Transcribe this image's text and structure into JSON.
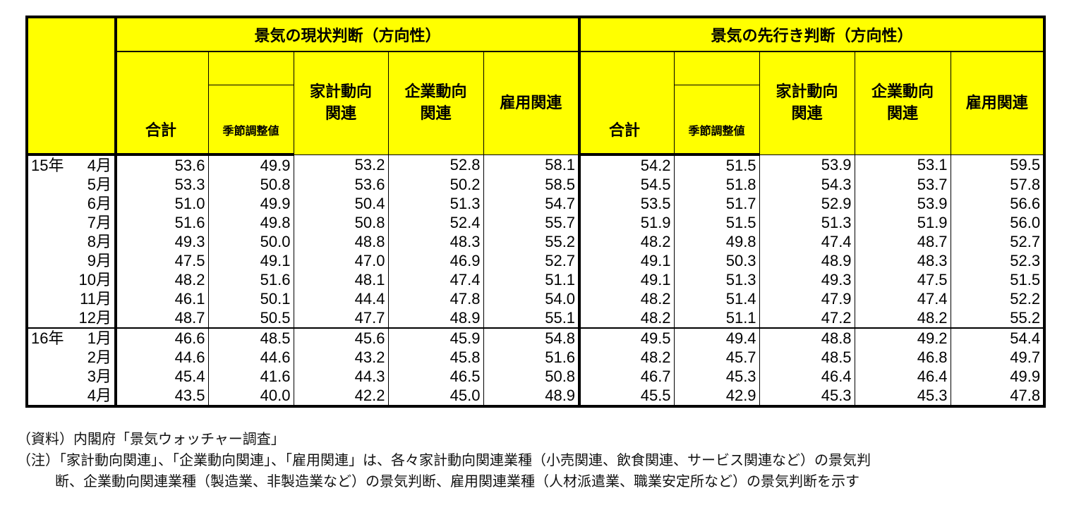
{
  "table": {
    "group_current": "景気の現状判断（方向性）",
    "group_future": "景気の先行き判断（方向性）",
    "columns": {
      "total": "合計",
      "seasonal": "季節調整値",
      "household": [
        "家計動向",
        "関連"
      ],
      "corporate": [
        "企業動向",
        "関連"
      ],
      "employment": "雇用関連"
    },
    "rows": [
      {
        "year": "15年",
        "month": "4月",
        "cur": [
          "53.6",
          "49.9",
          "53.2",
          "52.8",
          "58.1"
        ],
        "fut": [
          "54.2",
          "51.5",
          "53.9",
          "53.1",
          "59.5"
        ]
      },
      {
        "year": "",
        "month": "5月",
        "cur": [
          "53.3",
          "50.8",
          "53.6",
          "50.2",
          "58.5"
        ],
        "fut": [
          "54.5",
          "51.8",
          "54.3",
          "53.7",
          "57.8"
        ]
      },
      {
        "year": "",
        "month": "6月",
        "cur": [
          "51.0",
          "49.9",
          "50.4",
          "51.3",
          "54.7"
        ],
        "fut": [
          "53.5",
          "51.7",
          "52.9",
          "53.9",
          "56.6"
        ]
      },
      {
        "year": "",
        "month": "7月",
        "cur": [
          "51.6",
          "49.8",
          "50.8",
          "52.4",
          "55.7"
        ],
        "fut": [
          "51.9",
          "51.5",
          "51.3",
          "51.9",
          "56.0"
        ]
      },
      {
        "year": "",
        "month": "8月",
        "cur": [
          "49.3",
          "50.0",
          "48.8",
          "48.3",
          "55.2"
        ],
        "fut": [
          "48.2",
          "49.8",
          "47.4",
          "48.7",
          "52.7"
        ]
      },
      {
        "year": "",
        "month": "9月",
        "cur": [
          "47.5",
          "49.1",
          "47.0",
          "46.9",
          "52.7"
        ],
        "fut": [
          "49.1",
          "50.3",
          "48.9",
          "48.3",
          "52.3"
        ]
      },
      {
        "year": "",
        "month": "10月",
        "cur": [
          "48.2",
          "51.6",
          "48.1",
          "47.4",
          "51.1"
        ],
        "fut": [
          "49.1",
          "51.3",
          "49.3",
          "47.5",
          "51.5"
        ]
      },
      {
        "year": "",
        "month": "11月",
        "cur": [
          "46.1",
          "50.1",
          "44.4",
          "47.8",
          "54.0"
        ],
        "fut": [
          "48.2",
          "51.4",
          "47.9",
          "47.4",
          "52.2"
        ]
      },
      {
        "year": "",
        "month": "12月",
        "cur": [
          "48.7",
          "50.5",
          "47.7",
          "48.9",
          "55.1"
        ],
        "fut": [
          "48.2",
          "51.1",
          "47.2",
          "48.2",
          "55.2"
        ]
      },
      {
        "year": "16年",
        "month": "1月",
        "cur": [
          "46.6",
          "48.5",
          "45.6",
          "45.9",
          "54.8"
        ],
        "fut": [
          "49.5",
          "49.4",
          "48.8",
          "49.2",
          "54.4"
        ]
      },
      {
        "year": "",
        "month": "2月",
        "cur": [
          "44.6",
          "44.6",
          "43.2",
          "45.8",
          "51.6"
        ],
        "fut": [
          "48.2",
          "45.7",
          "48.5",
          "46.8",
          "49.7"
        ]
      },
      {
        "year": "",
        "month": "3月",
        "cur": [
          "45.4",
          "41.6",
          "44.3",
          "46.5",
          "50.8"
        ],
        "fut": [
          "46.7",
          "45.3",
          "46.4",
          "46.4",
          "49.9"
        ]
      },
      {
        "year": "",
        "month": "4月",
        "cur": [
          "43.5",
          "40.0",
          "42.2",
          "45.0",
          "48.9"
        ],
        "fut": [
          "45.5",
          "42.9",
          "45.3",
          "45.3",
          "47.8"
        ]
      }
    ]
  },
  "notes": {
    "source": "（資料）内閣府「景気ウォッチャー調査」",
    "note_line1": "（注）「家計動向関連」、「企業動向関連」、「雇用関連」は、各々家計動向関連業種（小売関連、飲食関連、サービス関連など）の景気判",
    "note_line2": "断、企業動向関連業種（製造業、非製造業など）の景気判断、雇用関連業種（人材派遣業、職業安定所など）の景気判断を示す"
  },
  "colors": {
    "header_bg": "#ffff00",
    "border": "#000000"
  },
  "chart_data": {
    "type": "table",
    "series_groups": [
      "景気の現状判断（方向性）",
      "景気の先行き判断（方向性）"
    ],
    "columns": [
      "合計",
      "季節調整値",
      "家計動向関連",
      "企業動向関連",
      "雇用関連"
    ],
    "row_labels": [
      "15年 4月",
      "5月",
      "6月",
      "7月",
      "8月",
      "9月",
      "10月",
      "11月",
      "12月",
      "16年 1月",
      "2月",
      "3月",
      "4月"
    ],
    "current": [
      [
        53.6,
        49.9,
        53.2,
        52.8,
        58.1
      ],
      [
        53.3,
        50.8,
        53.6,
        50.2,
        58.5
      ],
      [
        51.0,
        49.9,
        50.4,
        51.3,
        54.7
      ],
      [
        51.6,
        49.8,
        50.8,
        52.4,
        55.7
      ],
      [
        49.3,
        50.0,
        48.8,
        48.3,
        55.2
      ],
      [
        47.5,
        49.1,
        47.0,
        46.9,
        52.7
      ],
      [
        48.2,
        51.6,
        48.1,
        47.4,
        51.1
      ],
      [
        46.1,
        50.1,
        44.4,
        47.8,
        54.0
      ],
      [
        48.7,
        50.5,
        47.7,
        48.9,
        55.1
      ],
      [
        46.6,
        48.5,
        45.6,
        45.9,
        54.8
      ],
      [
        44.6,
        44.6,
        43.2,
        45.8,
        51.6
      ],
      [
        45.4,
        41.6,
        44.3,
        46.5,
        50.8
      ],
      [
        43.5,
        40.0,
        42.2,
        45.0,
        48.9
      ]
    ],
    "future": [
      [
        54.2,
        51.5,
        53.9,
        53.1,
        59.5
      ],
      [
        54.5,
        51.8,
        54.3,
        53.7,
        57.8
      ],
      [
        53.5,
        51.7,
        52.9,
        53.9,
        56.6
      ],
      [
        51.9,
        51.5,
        51.3,
        51.9,
        56.0
      ],
      [
        48.2,
        49.8,
        47.4,
        48.7,
        52.7
      ],
      [
        49.1,
        50.3,
        48.9,
        48.3,
        52.3
      ],
      [
        49.1,
        51.3,
        49.3,
        47.5,
        51.5
      ],
      [
        48.2,
        51.4,
        47.9,
        47.4,
        52.2
      ],
      [
        48.2,
        51.1,
        47.2,
        48.2,
        55.2
      ],
      [
        49.5,
        49.4,
        48.8,
        49.2,
        54.4
      ],
      [
        48.2,
        45.7,
        48.5,
        46.8,
        49.7
      ],
      [
        46.7,
        45.3,
        46.4,
        46.4,
        49.9
      ],
      [
        45.5,
        42.9,
        45.3,
        45.3,
        47.8
      ]
    ]
  }
}
